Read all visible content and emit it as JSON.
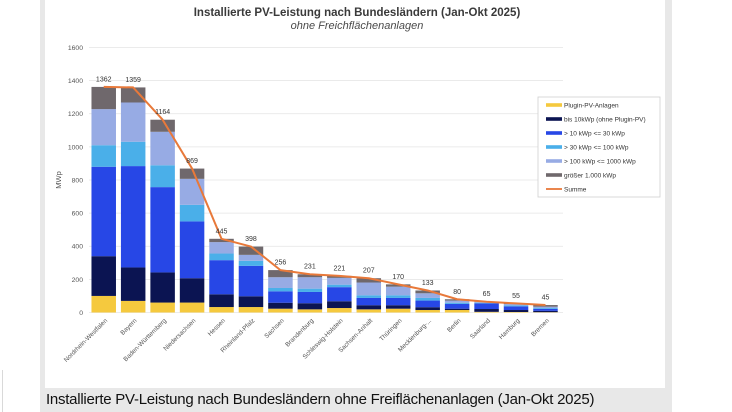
{
  "caption": "Installierte PV-Leistung nach Bundesländern ohne Freiflächenanlagen (Jan-Okt 2025)",
  "chart_data": {
    "type": "bar",
    "stacked": true,
    "title": "Installierte PV-Leistung nach Bundesländern (Jan-Okt 2025)",
    "subtitle": "ohne Freichflächenanlagen",
    "xlabel": "",
    "ylabel": "MWp",
    "ylim": [
      0,
      1600
    ],
    "yticks": [
      0,
      200,
      400,
      600,
      800,
      1000,
      1200,
      1400,
      1600
    ],
    "grid": true,
    "legend_position": "right",
    "categories": [
      "Nordrhein-Westfalen",
      "Bayern",
      "Baden-Württemberg",
      "Niedersachsen",
      "Hessen",
      "Rheinland-Pfalz",
      "Sachsen",
      "Brandenburg",
      "Schleswig-Holstein",
      "Sachsen-Anhalt",
      "Thüringen",
      "Mecklenburg-...",
      "Berlin",
      "Saarland",
      "Hamburg",
      "Bremen"
    ],
    "series": [
      {
        "name": "Plugin-PV-Anlagen",
        "color": "#f5c93e",
        "values": [
          100,
          70,
          60,
          60,
          33,
          33,
          23,
          19,
          27,
          19,
          23,
          15,
          15,
          4,
          3,
          2
        ]
      },
      {
        "name": "bis 10kWp (ohne Plugin-PV)",
        "color": "#0b1452",
        "values": [
          240,
          202,
          182,
          147,
          77,
          65,
          36,
          37,
          41,
          25,
          21,
          17,
          8,
          17,
          12,
          8
        ]
      },
      {
        "name": "> 10 kWp <= 30 kWp",
        "color": "#2747e6",
        "values": [
          540,
          612,
          515,
          343,
          206,
          184,
          69,
          68,
          85,
          44,
          44,
          40,
          29,
          34,
          22,
          12
        ]
      },
      {
        "name": "> 30 kWp <= 100 kWp",
        "color": "#4aafe9",
        "values": [
          130,
          147,
          132,
          100,
          40,
          30,
          20,
          20,
          15,
          16,
          16,
          16,
          7,
          4,
          6,
          5
        ]
      },
      {
        "name": "> 100 kWp <= 1000 kWp",
        "color": "#97abe4",
        "values": [
          218,
          237,
          202,
          157,
          69,
          36,
          65,
          69,
          41,
          77,
          52,
          28,
          13,
          4,
          8,
          8
        ]
      },
      {
        "name": "größer 1.000 kWp",
        "color": "#6f686c",
        "values": [
          134,
          91,
          73,
          62,
          20,
          50,
          43,
          18,
          12,
          26,
          14,
          17,
          8,
          2,
          4,
          10
        ]
      }
    ],
    "line_series": {
      "name": "Summe",
      "color": "#e8793a",
      "type": "line",
      "values": [
        1362,
        1359,
        1164,
        869,
        445,
        398,
        256,
        231,
        221,
        207,
        170,
        133,
        80,
        65,
        55,
        45
      ]
    },
    "data_labels": [
      1362,
      1359,
      1164,
      869,
      445,
      398,
      256,
      231,
      221,
      207,
      170,
      133,
      80,
      65,
      55,
      45
    ]
  }
}
